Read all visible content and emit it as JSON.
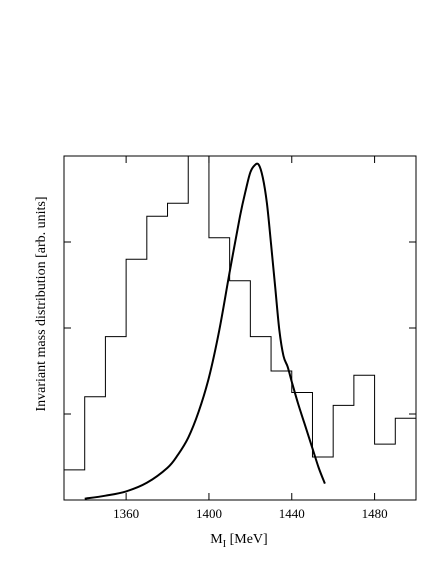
{
  "chart_data": {
    "type": "line",
    "xlabel_main": "M",
    "xlabel_sub": "I",
    "xlabel_unit": " [MeV]",
    "ylabel": "Invariant mass distribution [arb. units]",
    "xlim": [
      1330,
      1500
    ],
    "ylim": [
      0,
      8
    ],
    "x_ticks": [
      1360,
      1400,
      1440,
      1480
    ],
    "y_ticks": [
      2,
      4,
      6
    ],
    "grid": false,
    "series": [
      {
        "style": "histogram",
        "bin_edges": [
          1330,
          1340,
          1350,
          1360,
          1370,
          1380,
          1390,
          1400,
          1410,
          1420,
          1430,
          1440,
          1450,
          1460,
          1470,
          1480,
          1490,
          1500
        ],
        "values": [
          0.7,
          2.4,
          3.8,
          5.6,
          6.6,
          6.9,
          8.0,
          6.1,
          5.1,
          3.8,
          3.0,
          2.5,
          1.0,
          2.2,
          2.9,
          1.3,
          1.9
        ]
      },
      {
        "style": "smooth-line",
        "x": [
          1340,
          1350,
          1360,
          1370,
          1380,
          1385,
          1390,
          1395,
          1400,
          1405,
          1410,
          1415,
          1418,
          1420,
          1422,
          1424,
          1426,
          1428,
          1430,
          1432,
          1434,
          1436,
          1438,
          1440,
          1443,
          1446,
          1450,
          1453,
          1456
        ],
        "y": [
          0.03,
          0.1,
          0.2,
          0.4,
          0.75,
          1.05,
          1.45,
          2.05,
          2.85,
          3.95,
          5.3,
          6.6,
          7.25,
          7.62,
          7.78,
          7.8,
          7.5,
          6.9,
          5.95,
          4.95,
          3.95,
          3.35,
          3.1,
          2.75,
          2.25,
          1.8,
          1.2,
          0.75,
          0.38
        ]
      }
    ]
  }
}
